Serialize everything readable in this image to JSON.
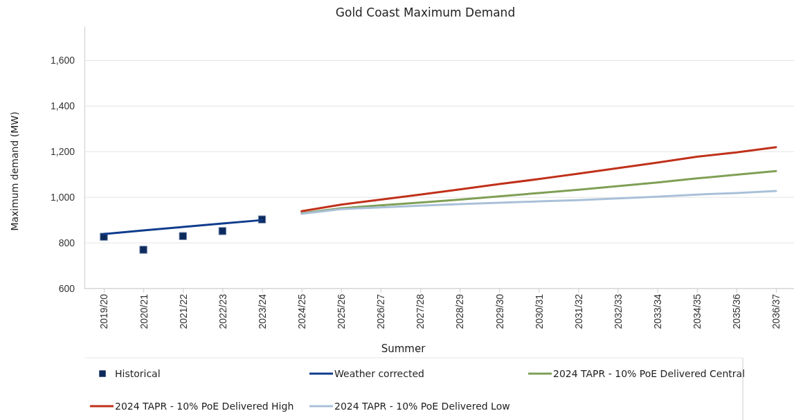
{
  "chart_data": {
    "type": "line",
    "title": "Gold Coast Maximum Demand",
    "xlabel": "Summer",
    "ylabel": "Maximum demand (MW)",
    "categories": [
      "2019/20",
      "2020/21",
      "2021/22",
      "2022/23",
      "2023/24",
      "2024/25",
      "2025/26",
      "2026/27",
      "2027/28",
      "2028/29",
      "2029/30",
      "2030/31",
      "2031/32",
      "2032/33",
      "2033/34",
      "2034/35",
      "2035/36",
      "2036/37"
    ],
    "ylim": [
      600,
      1750
    ],
    "yticks": [
      {
        "value": 600,
        "label": "600"
      },
      {
        "value": 800,
        "label": "800"
      },
      {
        "value": 1000,
        "label": "1,000"
      },
      {
        "value": 1200,
        "label": "1,200"
      },
      {
        "value": 1400,
        "label": "1,400"
      },
      {
        "value": 1600,
        "label": "1,600"
      }
    ],
    "grid": "y",
    "legend": "bottom",
    "series": [
      {
        "name": "Historical",
        "type": "scatter",
        "marker": "square",
        "color": "#0d2a5c",
        "values": [
          827,
          770,
          830,
          852,
          903,
          null,
          null,
          null,
          null,
          null,
          null,
          null,
          null,
          null,
          null,
          null,
          null,
          null
        ]
      },
      {
        "name": "Weather corrected",
        "color": "#0f3c8c",
        "values": [
          839,
          855,
          870,
          885,
          900,
          null,
          null,
          null,
          null,
          null,
          null,
          null,
          null,
          null,
          null,
          null,
          null,
          null
        ]
      },
      {
        "name": "2024 TAPR - 10% PoE Delivered Central",
        "color": "#7f9f55",
        "values": [
          null,
          null,
          null,
          null,
          null,
          930,
          952,
          965,
          977,
          990,
          1004,
          1019,
          1033,
          1049,
          1065,
          1083,
          1099,
          1115
        ]
      },
      {
        "name": "2024 TAPR - 10% PoE Delivered High",
        "color": "#c0301a",
        "values": [
          null,
          null,
          null,
          null,
          null,
          939,
          968,
          990,
          1012,
          1035,
          1058,
          1080,
          1104,
          1128,
          1152,
          1178,
          1197,
          1220
        ]
      },
      {
        "name": "2024 TAPR - 10% PoE Delivered Low",
        "color": "#a9c0d8",
        "values": [
          null,
          null,
          null,
          null,
          null,
          928,
          948,
          956,
          963,
          970,
          976,
          982,
          988,
          995,
          1003,
          1012,
          1019,
          1028
        ]
      }
    ]
  }
}
